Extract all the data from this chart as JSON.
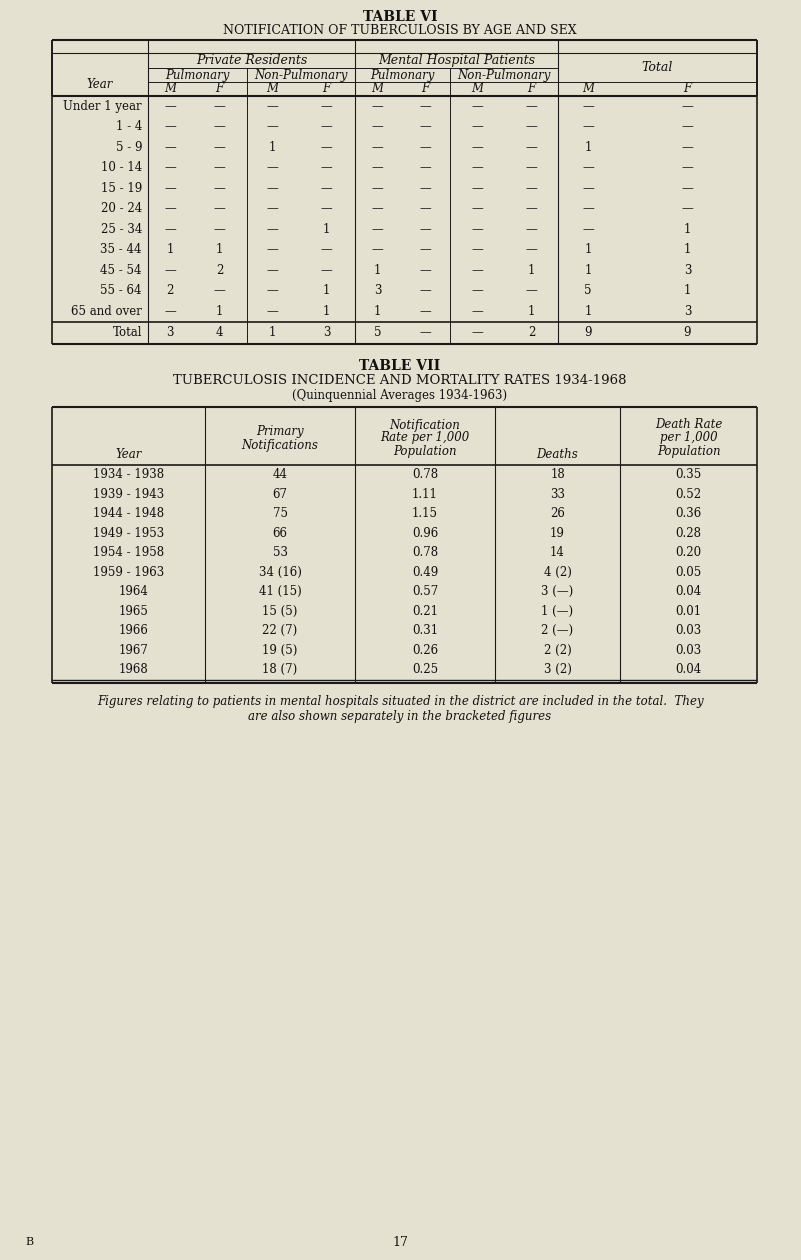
{
  "bg_color": "#e5e1d0",
  "table6": {
    "title1": "TABLE VI",
    "title2": "NOTIFICATION OF TUBERCULOSIS BY AGE AND SEX",
    "mf_labels": [
      "M",
      "F",
      "M",
      "F",
      "M",
      "F",
      "M",
      "F",
      "M",
      "F"
    ],
    "rows": [
      {
        "age": "Under 1 year",
        "vals": [
          "—",
          "—",
          "—",
          "—",
          "—",
          "—",
          "—",
          "—",
          "—",
          "—"
        ]
      },
      {
        "age": "1 - 4",
        "vals": [
          "—",
          "—",
          "—",
          "—",
          "—",
          "—",
          "—",
          "—",
          "—",
          "—"
        ]
      },
      {
        "age": "5 - 9",
        "vals": [
          "—",
          "—",
          "1",
          "—",
          "—",
          "—",
          "—",
          "—",
          "1",
          "—"
        ]
      },
      {
        "age": "10 - 14",
        "vals": [
          "—",
          "—",
          "—",
          "—",
          "—",
          "—",
          "—",
          "—",
          "—",
          "—"
        ]
      },
      {
        "age": "15 - 19",
        "vals": [
          "—",
          "—",
          "—",
          "—",
          "—",
          "—",
          "—",
          "—",
          "—",
          "—"
        ]
      },
      {
        "age": "20 - 24",
        "vals": [
          "—",
          "—",
          "—",
          "—",
          "—",
          "—",
          "—",
          "—",
          "—",
          "—"
        ]
      },
      {
        "age": "25 - 34",
        "vals": [
          "—",
          "—",
          "—",
          "1",
          "—",
          "—",
          "—",
          "—",
          "—",
          "1"
        ]
      },
      {
        "age": "35 - 44",
        "vals": [
          "1",
          "1",
          "—",
          "—",
          "—",
          "—",
          "—",
          "—",
          "1",
          "1"
        ]
      },
      {
        "age": "45 - 54",
        "vals": [
          "—",
          "2",
          "—",
          "—",
          "1",
          "—",
          "—",
          "1",
          "1",
          "3"
        ]
      },
      {
        "age": "55 - 64",
        "vals": [
          "2",
          "—",
          "—",
          "1",
          "3",
          "—",
          "—",
          "—",
          "5",
          "1"
        ]
      },
      {
        "age": "65 and over",
        "vals": [
          "—",
          "1",
          "—",
          "1",
          "1",
          "—",
          "—",
          "1",
          "1",
          "3"
        ]
      }
    ],
    "total_row": {
      "age": "Total",
      "vals": [
        "3",
        "4",
        "1",
        "3",
        "5",
        "—",
        "—",
        "2",
        "9",
        "9"
      ]
    }
  },
  "table7": {
    "title1": "TABLE VII",
    "title2": "TUBERCULOSIS INCIDENCE AND MORTALITY RATES 1934-1968",
    "title3": "(Quinquennial Averages 1934-1963)",
    "rows": [
      {
        "year": "1934 - 1938",
        "notif": "44",
        "rate": "0.78",
        "deaths": "18",
        "drate": "0.35",
        "indent": false
      },
      {
        "year": "1939 - 1943",
        "notif": "67",
        "rate": "1.11",
        "deaths": "33",
        "drate": "0.52",
        "indent": false
      },
      {
        "year": "1944 - 1948",
        "notif": "75",
        "rate": "1.15",
        "deaths": "26",
        "drate": "0.36",
        "indent": false
      },
      {
        "year": "1949 - 1953",
        "notif": "66",
        "rate": "0.96",
        "deaths": "19",
        "drate": "0.28",
        "indent": false
      },
      {
        "year": "1954 - 1958",
        "notif": "53",
        "rate": "0.78",
        "deaths": "14",
        "drate": "0.20",
        "indent": false
      },
      {
        "year": "1959 - 1963",
        "notif": "34 (16)",
        "rate": "0.49",
        "deaths": "4 (2)",
        "drate": "0.05",
        "indent": false
      },
      {
        "year": "1964",
        "notif": "41 (15)",
        "rate": "0.57",
        "deaths": "3 (—)",
        "drate": "0.04",
        "indent": true
      },
      {
        "year": "1965",
        "notif": "15 (5)",
        "rate": "0.21",
        "deaths": "1 (—)",
        "drate": "0.01",
        "indent": true
      },
      {
        "year": "1966",
        "notif": "22 (7)",
        "rate": "0.31",
        "deaths": "2 (—)",
        "drate": "0.03",
        "indent": true
      },
      {
        "year": "1967",
        "notif": "19 (5)",
        "rate": "0.26",
        "deaths": "2 (2)",
        "drate": "0.03",
        "indent": true
      },
      {
        "year": "1968",
        "notif": "18 (7)",
        "rate": "0.25",
        "deaths": "3 (2)",
        "drate": "0.04",
        "indent": true
      }
    ],
    "footnote_line1": "Figures relating to patients in mental hospitals situated in the district are included in the total.  They",
    "footnote_line2": "are also shown separately in the bracketed figures"
  },
  "footer_left": "B",
  "footer_center": "17",
  "fig_width": 8.01,
  "fig_height": 12.6,
  "dpi": 100
}
